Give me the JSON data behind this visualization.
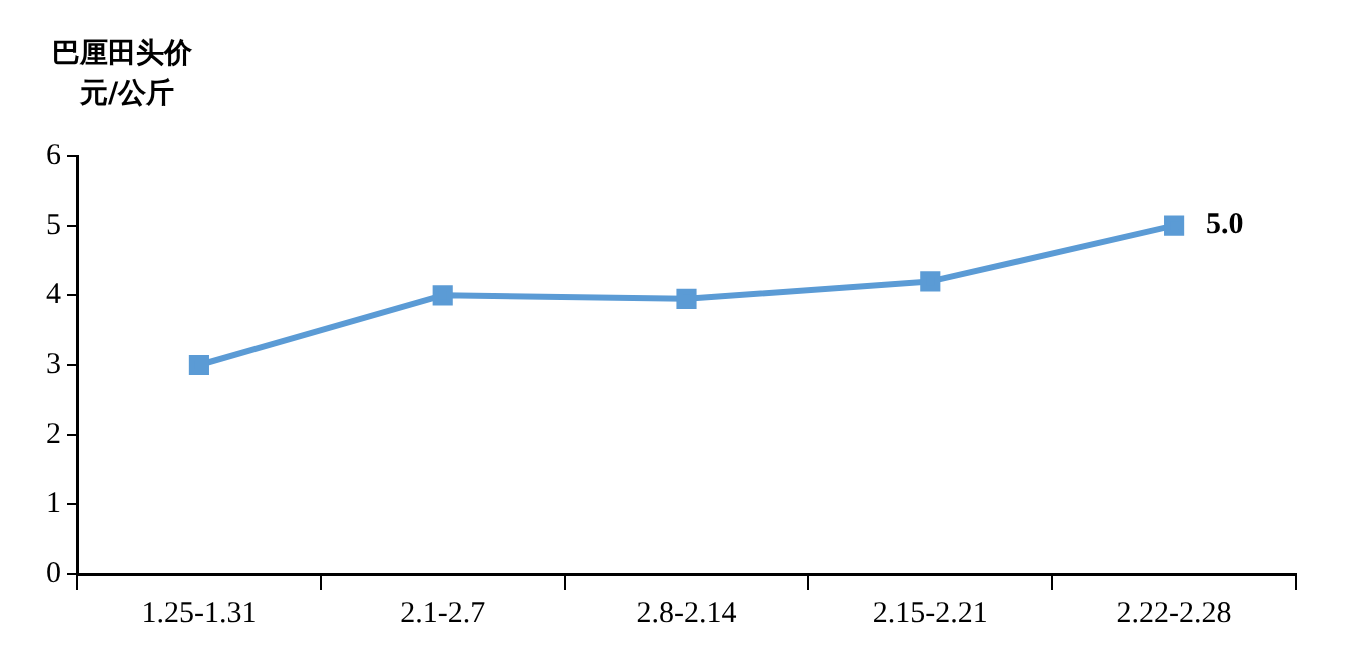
{
  "chart_data": {
    "type": "line",
    "title": "巴厘田头价",
    "ylabel": "元/公斤",
    "categories": [
      "1.25-1.31",
      "2.1-2.7",
      "2.8-2.14",
      "2.15-2.21",
      "2.22-2.28"
    ],
    "series": [
      {
        "color": "#5b9bd5",
        "values": [
          3.0,
          4.0,
          3.95,
          4.2,
          5.0
        ],
        "value_labels": [
          null,
          null,
          null,
          null,
          "5.0"
        ]
      }
    ],
    "ylim": [
      0,
      6
    ],
    "yticks": [
      0,
      1,
      2,
      3,
      4,
      5,
      6
    ],
    "grid": false,
    "legend": false,
    "marker": "square",
    "line_style": "solid"
  }
}
